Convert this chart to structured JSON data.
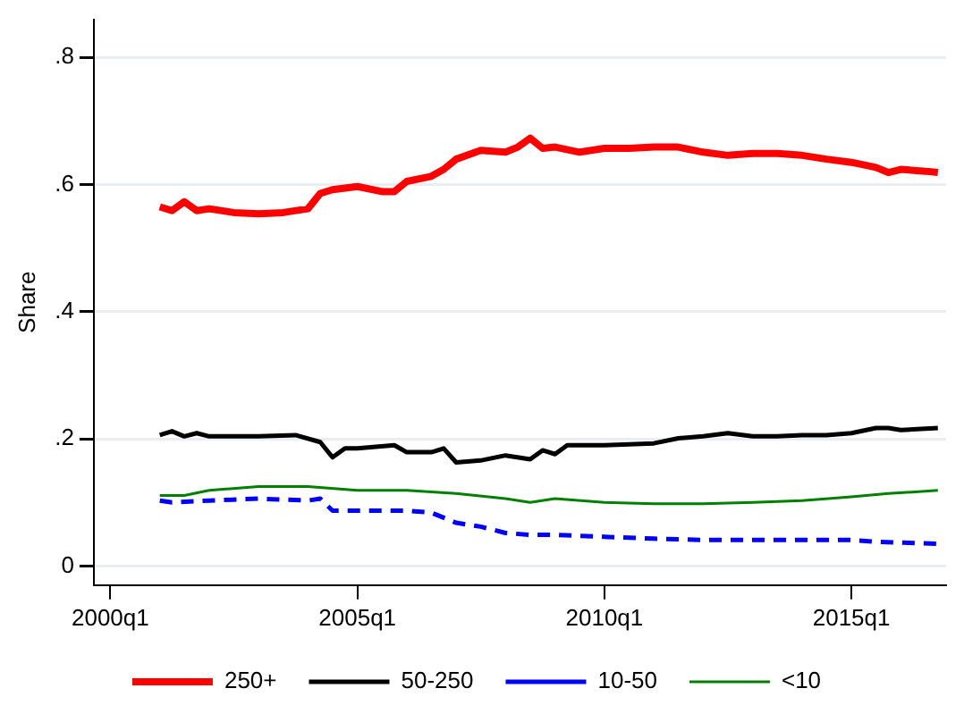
{
  "chart_data": {
    "type": "line",
    "ylabel": "Share",
    "xlim": [
      "1999-09",
      "2016-12"
    ],
    "ylim": [
      -0.03,
      0.86
    ],
    "xticks": [
      {
        "value": "2000-01",
        "label": "2000q1"
      },
      {
        "value": "2005-01",
        "label": "2005q1"
      },
      {
        "value": "2010-01",
        "label": "2010q1"
      },
      {
        "value": "2015-01",
        "label": "2015q1"
      }
    ],
    "yticks": [
      {
        "value": 0,
        "label": "0"
      },
      {
        "value": 0.2,
        "label": ".2"
      },
      {
        "value": 0.4,
        "label": ".4"
      },
      {
        "value": 0.6,
        "label": ".6"
      },
      {
        "value": 0.8,
        "label": ".8"
      }
    ],
    "grid": "y",
    "legend": "bottom",
    "marker": "none",
    "series": [
      {
        "name": "250+",
        "color": "#ff0000",
        "line_style": "solid",
        "x": [
          "2001-01",
          "2001-04",
          "2001-07",
          "2001-10",
          "2002-01",
          "2002-07",
          "2003-01",
          "2003-07",
          "2004-01",
          "2004-04",
          "2004-07",
          "2005-01",
          "2005-07",
          "2005-10",
          "2006-01",
          "2006-07",
          "2006-10",
          "2007-01",
          "2007-07",
          "2008-01",
          "2008-04",
          "2008-07",
          "2008-10",
          "2009-01",
          "2009-07",
          "2010-01",
          "2010-07",
          "2011-01",
          "2011-07",
          "2012-01",
          "2012-07",
          "2013-01",
          "2013-07",
          "2014-01",
          "2014-07",
          "2015-01",
          "2015-07",
          "2015-10",
          "2016-01",
          "2016-07",
          "2016-10"
        ],
        "values": [
          0.565,
          0.559,
          0.573,
          0.559,
          0.562,
          0.556,
          0.554,
          0.556,
          0.562,
          0.586,
          0.592,
          0.597,
          0.589,
          0.589,
          0.605,
          0.613,
          0.624,
          0.64,
          0.654,
          0.651,
          0.659,
          0.673,
          0.657,
          0.659,
          0.651,
          0.657,
          0.657,
          0.659,
          0.659,
          0.651,
          0.646,
          0.649,
          0.649,
          0.646,
          0.64,
          0.635,
          0.627,
          0.619,
          0.624,
          0.621,
          0.619
        ]
      },
      {
        "name": "50-250",
        "color": "#000000",
        "line_style": "solid",
        "x": [
          "2001-01",
          "2001-04",
          "2001-07",
          "2001-10",
          "2002-01",
          "2003-01",
          "2003-10",
          "2004-04",
          "2004-07",
          "2004-10",
          "2005-01",
          "2005-10",
          "2006-01",
          "2006-07",
          "2006-10",
          "2007-01",
          "2007-07",
          "2008-01",
          "2008-07",
          "2008-10",
          "2009-01",
          "2009-04",
          "2010-01",
          "2011-01",
          "2011-07",
          "2012-01",
          "2012-07",
          "2013-01",
          "2013-07",
          "2014-01",
          "2014-07",
          "2015-01",
          "2015-07",
          "2015-10",
          "2016-01",
          "2016-10"
        ],
        "values": [
          0.206,
          0.212,
          0.204,
          0.209,
          0.204,
          0.204,
          0.206,
          0.195,
          0.171,
          0.185,
          0.185,
          0.19,
          0.179,
          0.179,
          0.185,
          0.163,
          0.166,
          0.174,
          0.168,
          0.182,
          0.176,
          0.19,
          0.19,
          0.193,
          0.201,
          0.204,
          0.209,
          0.204,
          0.204,
          0.206,
          0.206,
          0.209,
          0.217,
          0.217,
          0.214,
          0.217
        ]
      },
      {
        "name": "10-50",
        "color": "#0000ff",
        "line_style": "dashed",
        "x": [
          "2001-01",
          "2001-04",
          "2002-01",
          "2003-01",
          "2004-01",
          "2004-04",
          "2004-07",
          "2005-01",
          "2006-01",
          "2006-07",
          "2007-01",
          "2007-07",
          "2008-01",
          "2008-07",
          "2009-01",
          "2010-01",
          "2011-01",
          "2012-01",
          "2013-01",
          "2014-01",
          "2015-01",
          "2015-07",
          "2016-10"
        ],
        "values": [
          0.103,
          0.1,
          0.103,
          0.106,
          0.103,
          0.106,
          0.087,
          0.087,
          0.087,
          0.084,
          0.068,
          0.062,
          0.052,
          0.049,
          0.049,
          0.046,
          0.043,
          0.041,
          0.041,
          0.041,
          0.041,
          0.038,
          0.035
        ]
      },
      {
        "name": "<10",
        "color": "#008000",
        "line_style": "solid",
        "x": [
          "2001-01",
          "2001-07",
          "2002-01",
          "2003-01",
          "2004-01",
          "2005-01",
          "2006-01",
          "2007-01",
          "2008-01",
          "2008-07",
          "2009-01",
          "2010-01",
          "2011-01",
          "2012-01",
          "2013-01",
          "2014-01",
          "2015-01",
          "2015-10",
          "2016-10"
        ],
        "values": [
          0.111,
          0.111,
          0.119,
          0.125,
          0.125,
          0.119,
          0.119,
          0.114,
          0.106,
          0.1,
          0.106,
          0.1,
          0.098,
          0.098,
          0.1,
          0.103,
          0.109,
          0.114,
          0.119
        ]
      }
    ]
  }
}
